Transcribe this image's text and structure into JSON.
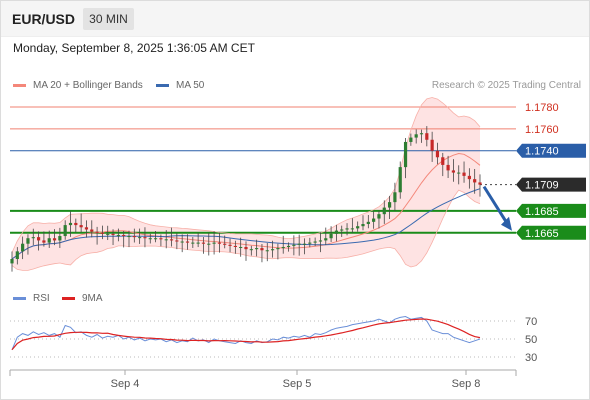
{
  "header": {
    "symbol": "EUR/USD",
    "interval": "30 MIN"
  },
  "timestamp": "Monday, September 8, 2025 1:36:05 AM CET",
  "legend": {
    "bollinger_label": "MA 20 + Bollinger Bands",
    "ma50_label": "MA 50",
    "credit": "Research © 2025 Trading Central"
  },
  "rsi_legend": {
    "rsi_label": "RSI",
    "ma_label": "9MA"
  },
  "colors": {
    "resistance": "#f08070",
    "resistance_text": "#d03020",
    "current": "#2a5ea8",
    "support": "#1a8c1a",
    "bollinger": "#f4877a",
    "band_fill": "#fdd9d9",
    "ma50": "#3a6ab0",
    "candle_up": "#2e7d32",
    "candle_down": "#c62828",
    "rsi": "#6a8fd8",
    "rsi_ma": "#dd2222",
    "arrow": "#2a5ea8"
  },
  "chart_data": {
    "type": "candlestick",
    "instrument": "EUR/USD",
    "timeframe": "30 MIN",
    "x_ticks": [
      "Sep 4",
      "Sep 5",
      "Sep 8"
    ],
    "y_range": [
      1.162,
      1.179
    ],
    "levels": {
      "resistance": [
        1.178,
        1.176
      ],
      "pivot": 1.174,
      "last_price": 1.1709,
      "support": [
        1.1685,
        1.1665
      ]
    },
    "level_labels": {
      "r2": "1.1780",
      "r1": "1.1760",
      "pivot": "1.1740",
      "last": "1.1709",
      "s1": "1.1685",
      "s2": "1.1665"
    },
    "price_path": [
      1.1641,
      1.1648,
      1.1655,
      1.166,
      1.1661,
      1.1658,
      1.1656,
      1.166,
      1.1658,
      1.1662,
      1.1672,
      1.1674,
      1.1672,
      1.167,
      1.1668,
      1.1666,
      1.1665,
      1.1664,
      1.1664,
      1.1663,
      1.1663,
      1.1662,
      1.1662,
      1.1661,
      1.1661,
      1.166,
      1.166,
      1.166,
      1.1659,
      1.1659,
      1.1658,
      1.1657,
      1.1657,
      1.1656,
      1.1656,
      1.1656,
      1.1655,
      1.1655,
      1.1656,
      1.1655,
      1.1654,
      1.1653,
      1.1652,
      1.1652,
      1.165,
      1.165,
      1.1651,
      1.1649,
      1.1649,
      1.165,
      1.1651,
      1.1652,
      1.1653,
      1.1654,
      1.1655,
      1.1655,
      1.1656,
      1.1657,
      1.1658,
      1.166,
      1.1664,
      1.1667,
      1.1668,
      1.1669,
      1.1669,
      1.1671,
      1.1673,
      1.1675,
      1.1678,
      1.1682,
      1.1688,
      1.1693,
      1.1702,
      1.1725,
      1.1748,
      1.1752,
      1.1755,
      1.1756,
      1.175,
      1.174,
      1.1734,
      1.1727,
      1.1722,
      1.172,
      1.172,
      1.1717,
      1.1714,
      1.1711,
      1.1709
    ],
    "rsi": {
      "y_ticks": [
        70,
        50,
        30
      ],
      "values": [
        38,
        52,
        56,
        54,
        58,
        55,
        57,
        54,
        56,
        52,
        65,
        63,
        57,
        58,
        54,
        52,
        55,
        51,
        53,
        52,
        54,
        50,
        52,
        49,
        51,
        48,
        50,
        49,
        50,
        47,
        49,
        46,
        48,
        47,
        51,
        48,
        49,
        46,
        50,
        48,
        47,
        46,
        45,
        48,
        46,
        45,
        48,
        46,
        47,
        50,
        49,
        52,
        51,
        53,
        52,
        54,
        52,
        56,
        55,
        57,
        60,
        62,
        63,
        64,
        66,
        67,
        68,
        69,
        70,
        72,
        70,
        68,
        72,
        74,
        75,
        72,
        73,
        74,
        70,
        60,
        58,
        56,
        56,
        52,
        50,
        48,
        46,
        48,
        50
      ]
    }
  }
}
